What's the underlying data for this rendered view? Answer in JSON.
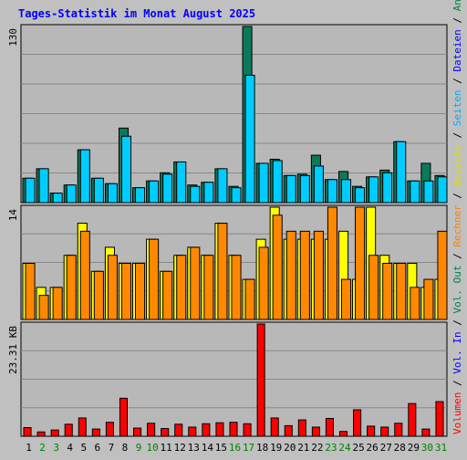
{
  "title": "Tages-Statistik im Monat August 2025",
  "colors": {
    "background": "#c0c0c0",
    "plot_bg": "#b8b8b8",
    "title": "#0000ff",
    "anfragen": "#0a7a5a",
    "dateien": "#00ccff",
    "seiten": "#33ccff",
    "besuche": "#ffff00",
    "rechner": "#ff8800",
    "volumen": "#ff0000",
    "weekday_label": "#000000",
    "weekend_label": "#008000"
  },
  "right_legend": [
    {
      "text": "Anfragen",
      "color": "#008040"
    },
    {
      "text": "Dateien",
      "color": "#0000ff"
    },
    {
      "text": "Seiten",
      "color": "#00aaff"
    },
    {
      "text": "Besuche",
      "color": "#dddd00"
    },
    {
      "text": "Rechner",
      "color": "#ff8000"
    },
    {
      "text": "Vol. Out",
      "color": "#008040"
    },
    {
      "text": "Vol. In",
      "color": "#0000ff"
    },
    {
      "text": "Volumen",
      "color": "#ff0000"
    }
  ],
  "legend_separator": " / ",
  "chart_data": {
    "type": "bar",
    "days": [
      "1",
      "2",
      "3",
      "4",
      "5",
      "6",
      "7",
      "8",
      "9",
      "10",
      "11",
      "12",
      "13",
      "14",
      "15",
      "16",
      "17",
      "18",
      "19",
      "20",
      "21",
      "22",
      "23",
      "24",
      "25",
      "26",
      "27",
      "28",
      "29",
      "30",
      "31"
    ],
    "weekend_days": [
      "2",
      "3",
      "9",
      "10",
      "16",
      "17",
      "23",
      "24",
      "30",
      "31"
    ],
    "panels": [
      {
        "id": "top",
        "ymax_label": "130",
        "ymax": 130,
        "series": [
          {
            "name": "Anfragen",
            "values": [
              18,
              25,
              7,
              13,
              39,
              18,
              14,
              55,
              11,
              16,
              22,
              30,
              13,
              15,
              25,
              12,
              130,
              29,
              32,
              20,
              21,
              35,
              17,
              23,
              12,
              19,
              24,
              45,
              16,
              29,
              20
            ]
          },
          {
            "name": "Dateien",
            "values": [
              18,
              25,
              7,
              13,
              39,
              18,
              14,
              49,
              11,
              16,
              21,
              30,
              12,
              15,
              25,
              11,
              94,
              29,
              31,
              20,
              20,
              27,
              17,
              17,
              11,
              19,
              22,
              45,
              16,
              16,
              19
            ]
          }
        ]
      },
      {
        "id": "middle",
        "ymax_label": "14",
        "ymax": 14,
        "series": [
          {
            "name": "Besuche",
            "values": [
              7,
              4,
              4,
              8,
              12,
              6,
              9,
              7,
              7,
              10,
              6,
              8,
              9,
              8,
              12,
              8,
              5,
              10,
              14,
              10,
              10,
              10,
              10,
              11,
              5,
              14,
              8,
              7,
              7,
              4,
              5
            ]
          },
          {
            "name": "Rechner",
            "values": [
              7,
              3,
              4,
              8,
              11,
              6,
              8,
              7,
              7,
              10,
              6,
              8,
              9,
              8,
              12,
              8,
              5,
              9,
              13,
              11,
              11,
              11,
              14,
              5,
              14,
              8,
              7,
              7,
              4,
              5,
              11
            ]
          }
        ]
      },
      {
        "id": "bottom",
        "ymax_label": "23.31 KB",
        "ymax": 23.31,
        "series": [
          {
            "name": "Volumen",
            "values": [
              1.8,
              0.9,
              1.3,
              2.5,
              3.8,
              1.5,
              2.9,
              7.9,
              1.7,
              2.7,
              1.6,
              2.5,
              1.9,
              2.6,
              2.8,
              2.9,
              2.6,
              23.31,
              3.8,
              2.2,
              3.4,
              1.9,
              3.7,
              1.0,
              5.5,
              2.1,
              1.9,
              2.7,
              6.8,
              1.5,
              7.2
            ]
          }
        ]
      }
    ]
  }
}
